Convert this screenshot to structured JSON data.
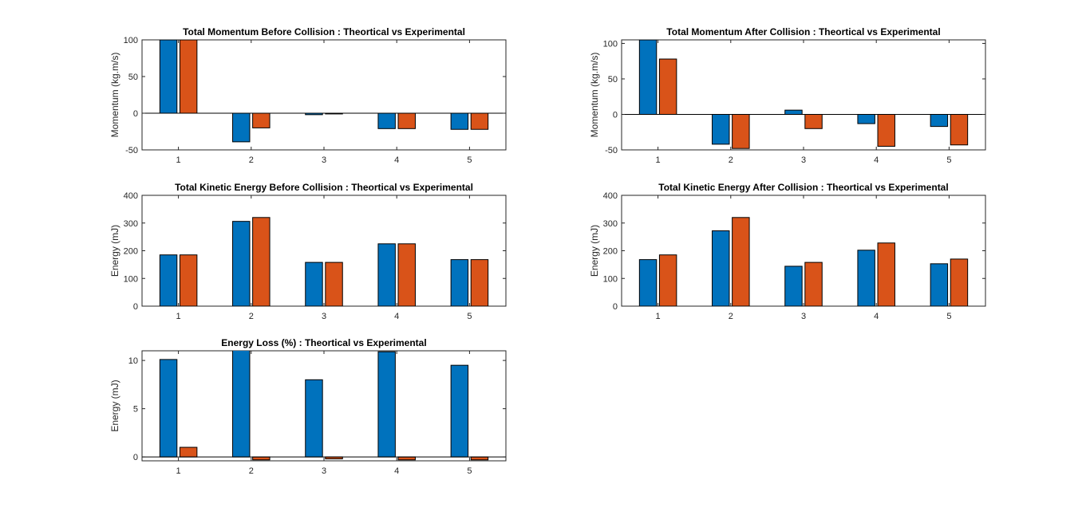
{
  "colors": {
    "theoretical": "#0072BD",
    "experimental": "#D95319"
  },
  "chart_data": [
    {
      "type": "bar",
      "title": "Total Momentum Before Collision : Theortical vs Experimental",
      "ylabel": "Momentum (kg.m/s)",
      "xlabel": "",
      "categories": [
        "1",
        "2",
        "3",
        "4",
        "5"
      ],
      "ylim": [
        -50,
        100
      ],
      "yticks": [
        -50,
        0,
        50,
        100
      ],
      "series": [
        {
          "values": [
            100,
            -39,
            -2,
            -21,
            -22
          ]
        },
        {
          "values": [
            100,
            -20,
            -1,
            -21,
            -22
          ]
        }
      ]
    },
    {
      "type": "bar",
      "title": "Total Momentum After Collision : Theortical vs Experimental",
      "ylabel": "Momentum (kg.m/s)",
      "xlabel": "",
      "categories": [
        "1",
        "2",
        "3",
        "4",
        "5"
      ],
      "ylim": [
        -50,
        105
      ],
      "yticks": [
        -50,
        0,
        50,
        100
      ],
      "series": [
        {
          "values": [
            105,
            -42,
            6,
            -13,
            -17
          ]
        },
        {
          "values": [
            78,
            -48,
            -20,
            -45,
            -43
          ]
        }
      ]
    },
    {
      "type": "bar",
      "title": "Total Kinetic Energy Before Collision : Theortical vs Experimental",
      "ylabel": "Energy (mJ)",
      "xlabel": "",
      "categories": [
        "1",
        "2",
        "3",
        "4",
        "5"
      ],
      "ylim": [
        0,
        400
      ],
      "yticks": [
        0,
        100,
        200,
        300,
        400
      ],
      "series": [
        {
          "values": [
            185,
            306,
            158,
            225,
            168
          ]
        },
        {
          "values": [
            185,
            320,
            158,
            225,
            168
          ]
        }
      ]
    },
    {
      "type": "bar",
      "title": "Total Kinetic Energy After Collision : Theortical vs Experimental",
      "ylabel": "Energy (mJ)",
      "xlabel": "",
      "categories": [
        "1",
        "2",
        "3",
        "4",
        "5"
      ],
      "ylim": [
        0,
        400
      ],
      "yticks": [
        0,
        100,
        200,
        300,
        400
      ],
      "series": [
        {
          "values": [
            168,
            272,
            144,
            202,
            153
          ]
        },
        {
          "values": [
            185,
            320,
            158,
            228,
            170
          ]
        }
      ]
    },
    {
      "type": "bar",
      "title": "Energy Loss (%) : Theortical vs Experimental",
      "ylabel": "Energy (mJ)",
      "xlabel": "",
      "categories": [
        "1",
        "2",
        "3",
        "4",
        "5"
      ],
      "ylim": [
        -0.4,
        11
      ],
      "yticks": [
        0,
        5,
        10
      ],
      "series": [
        {
          "values": [
            10.1,
            11.2,
            8.0,
            10.9,
            9.5
          ]
        },
        {
          "values": [
            1.0,
            -0.3,
            -0.2,
            -0.3,
            -0.3
          ]
        }
      ]
    }
  ]
}
